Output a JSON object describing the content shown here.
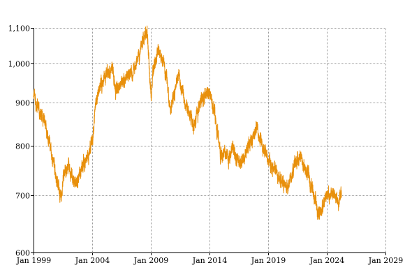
{
  "chart_data": {
    "type": "line",
    "title": "",
    "xlabel": "",
    "ylabel": "",
    "y_scale": "log",
    "grid": true,
    "legend": "none",
    "xlim": [
      "1999-01-01",
      "2029-01-01"
    ],
    "ylim": [
      600,
      1100
    ],
    "x_ticks": [
      {
        "date": "1999-01-01",
        "label": "Jan 1999"
      },
      {
        "date": "2004-01-01",
        "label": "Jan 2004"
      },
      {
        "date": "2009-01-01",
        "label": "Jan 2009"
      },
      {
        "date": "2014-01-01",
        "label": "Jan 2014"
      },
      {
        "date": "2019-01-01",
        "label": "Jan 2019"
      },
      {
        "date": "2024-01-01",
        "label": "Jan 2024"
      },
      {
        "date": "2029-01-01",
        "label": "Jan 2029"
      }
    ],
    "y_ticks": [
      {
        "value": 600,
        "label": "600"
      },
      {
        "value": 700,
        "label": "700"
      },
      {
        "value": 800,
        "label": "800"
      },
      {
        "value": 900,
        "label": "900"
      },
      {
        "value": 1000,
        "label": "1,000"
      },
      {
        "value": 1100,
        "label": "1,100"
      }
    ],
    "series": [
      {
        "color": "#e8900c",
        "x": [
          "1999-01",
          "1999-05",
          "1999-09",
          "2000-01",
          "2000-05",
          "2000-09",
          "2001-01",
          "2001-05",
          "2001-09",
          "2002-01",
          "2002-05",
          "2002-09",
          "2003-01",
          "2003-05",
          "2003-09",
          "2004-01",
          "2004-05",
          "2004-09",
          "2005-01",
          "2005-05",
          "2005-09",
          "2006-01",
          "2006-05",
          "2006-09",
          "2007-01",
          "2007-05",
          "2007-09",
          "2008-01",
          "2008-05",
          "2008-09",
          "2009-01",
          "2009-05",
          "2009-09",
          "2010-01",
          "2010-05",
          "2010-09",
          "2011-01",
          "2011-05",
          "2011-09",
          "2012-01",
          "2012-05",
          "2012-09",
          "2013-01",
          "2013-05",
          "2013-09",
          "2014-01",
          "2014-05",
          "2014-09",
          "2015-01",
          "2015-05",
          "2015-09",
          "2016-01",
          "2016-05",
          "2016-09",
          "2017-01",
          "2017-05",
          "2017-09",
          "2018-01",
          "2018-05",
          "2018-09",
          "2019-01",
          "2019-05",
          "2019-09",
          "2020-01",
          "2020-05",
          "2020-09",
          "2021-01",
          "2021-05",
          "2021-09",
          "2022-01",
          "2022-05",
          "2022-09",
          "2023-01",
          "2023-05",
          "2023-09",
          "2024-01",
          "2024-05",
          "2024-09",
          "2025-01",
          "2025-04"
        ],
        "y": [
          918,
          890,
          870,
          845,
          810,
          770,
          725,
          700,
          745,
          760,
          735,
          725,
          745,
          762,
          780,
          810,
          900,
          935,
          960,
          975,
          985,
          935,
          945,
          955,
          968,
          972,
          990,
          1020,
          1065,
          1085,
          925,
          1000,
          1030,
          1005,
          960,
          880,
          920,
          965,
          930,
          895,
          870,
          845,
          880,
          905,
          918,
          925,
          885,
          830,
          780,
          790,
          775,
          800,
          775,
          760,
          780,
          800,
          815,
          840,
          815,
          790,
          770,
          755,
          745,
          730,
          725,
          715,
          740,
          770,
          775,
          760,
          745,
          720,
          690,
          665,
          680,
          700,
          695,
          705,
          690,
          705
        ]
      }
    ]
  }
}
